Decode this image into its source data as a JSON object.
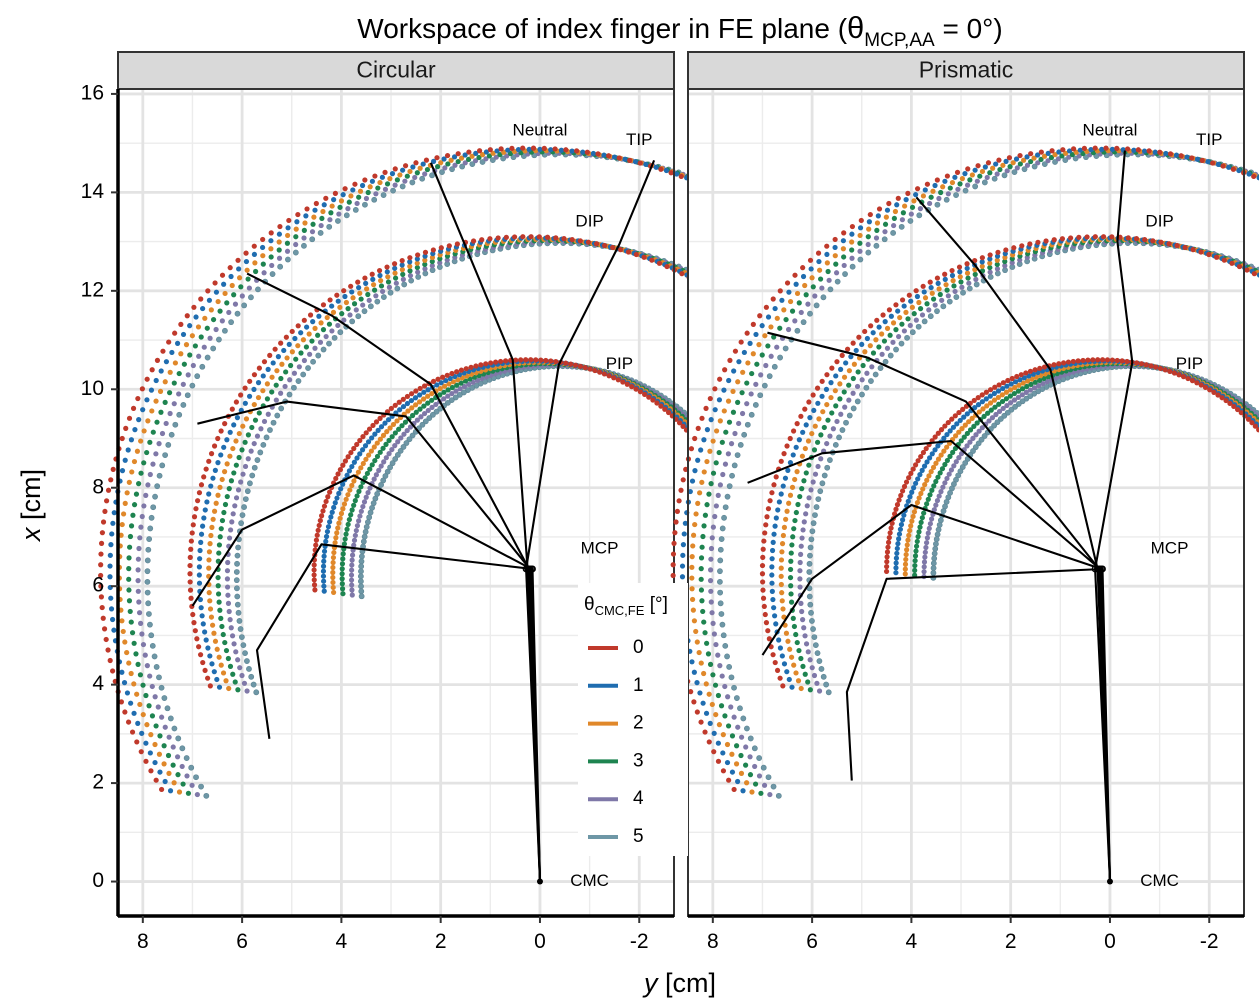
{
  "chart_data": {
    "type": "scatter",
    "title": {
      "prefix": "Workspace of index finger in FE plane (",
      "theta": "θ",
      "subscript": "MCP,AA",
      "suffix": " = 0°)"
    },
    "xlabel": {
      "var": "y",
      "unit": " [cm]"
    },
    "ylabel": {
      "var": "x",
      "unit": " [cm]"
    },
    "x_reversed": true,
    "xlim": [
      8.5,
      -2.7
    ],
    "ylim": [
      -0.7,
      16.1
    ],
    "xticks": [
      8,
      6,
      4,
      2,
      0,
      -2
    ],
    "xtick_labels": [
      "8",
      "6",
      "4",
      "2",
      "0",
      "-2"
    ],
    "yticks": [
      0,
      2,
      4,
      6,
      8,
      10,
      12,
      14,
      16
    ],
    "ytick_labels": [
      "0",
      "2",
      "4",
      "6",
      "8",
      "10",
      "12",
      "14",
      "16"
    ],
    "grid": true,
    "legend": {
      "title_theta": "θ",
      "title_sub": "CMC,FE",
      "title_unit": " [°]",
      "placement": "center",
      "entries": [
        "0",
        "1",
        "2",
        "3",
        "4",
        "5"
      ]
    },
    "series": [
      {
        "name": "0",
        "color": "#C0392B"
      },
      {
        "name": "1",
        "color": "#1F6DB0"
      },
      {
        "name": "2",
        "color": "#E0882A"
      },
      {
        "name": "3",
        "color": "#1E8450"
      },
      {
        "name": "4",
        "color": "#7F78A8"
      },
      {
        "name": "5",
        "color": "#6E97A6"
      }
    ],
    "annotations": [
      {
        "text": "TIP",
        "x": -2.0,
        "y": 15.05
      },
      {
        "text": "Neutral",
        "x": 0.0,
        "y": 15.25
      },
      {
        "text": "DIP",
        "x": -1.0,
        "y": 13.4
      },
      {
        "text": "PIP",
        "x": -1.6,
        "y": 10.5
      },
      {
        "text": "MCP",
        "x": -1.2,
        "y": 6.75
      },
      {
        "text": "CMC",
        "x": -1.0,
        "y": 0.0
      }
    ],
    "panels": [
      {
        "name": "Circular",
        "arcs": [
          {
            "joint": "PIP",
            "cx": 0.25,
            "cy": 6.3,
            "r": 4.3,
            "start_deg": -4,
            "end_deg": 185
          },
          {
            "joint": "DIP",
            "cx": 0.25,
            "cy": 6.3,
            "r": 6.8,
            "start_deg": 4,
            "end_deg": 200
          },
          {
            "joint": "TIP",
            "cx": 0.25,
            "cy": 6.3,
            "r": 8.6,
            "start_deg": 8,
            "end_deg": 211
          }
        ],
        "poses": [
          [
            [
              0,
              0
            ],
            [
              0.28,
              6.35
            ],
            [
              -0.38,
              10.5
            ],
            [
              -1.6,
              12.95
            ],
            [
              -2.3,
              14.65
            ]
          ],
          [
            [
              0,
              0
            ],
            [
              0.25,
              6.35
            ],
            [
              0.55,
              10.6
            ],
            [
              2.2,
              14.6
            ],
            [
              2.2,
              14.6
            ]
          ],
          [
            [
              0,
              0
            ],
            [
              0.22,
              6.35
            ],
            [
              2.2,
              10.1
            ],
            [
              4.2,
              11.5
            ],
            [
              5.9,
              12.35
            ]
          ],
          [
            [
              0,
              0
            ],
            [
              0.2,
              6.35
            ],
            [
              2.7,
              9.45
            ],
            [
              5.1,
              9.75
            ],
            [
              6.9,
              9.3
            ]
          ],
          [
            [
              0,
              0
            ],
            [
              0.17,
              6.35
            ],
            [
              3.75,
              8.25
            ],
            [
              6.0,
              7.15
            ],
            [
              7.0,
              5.6
            ]
          ],
          [
            [
              0,
              0
            ],
            [
              0.15,
              6.35
            ],
            [
              4.4,
              6.85
            ],
            [
              5.7,
              4.7
            ],
            [
              5.45,
              2.9
            ]
          ]
        ]
      },
      {
        "name": "Prismatic",
        "arcs": [
          {
            "joint": "PIP",
            "cx": 0.2,
            "cy": 6.3,
            "r": 4.3,
            "start_deg": -4,
            "end_deg": 180
          },
          {
            "joint": "DIP",
            "cx": 0.2,
            "cy": 6.3,
            "r": 6.8,
            "start_deg": 4,
            "end_deg": 200
          },
          {
            "joint": "TIP",
            "cx": 0.2,
            "cy": 6.3,
            "r": 8.6,
            "start_deg": 8,
            "end_deg": 211
          }
        ],
        "poses": [
          [
            [
              0,
              0
            ],
            [
              0.3,
              6.35
            ],
            [
              -0.45,
              10.55
            ],
            [
              -0.15,
              13.0
            ],
            [
              -0.3,
              14.85
            ]
          ],
          [
            [
              0,
              0
            ],
            [
              0.25,
              6.35
            ],
            [
              1.2,
              10.4
            ],
            [
              2.7,
              12.5
            ],
            [
              3.9,
              13.9
            ]
          ],
          [
            [
              0,
              0
            ],
            [
              0.22,
              6.35
            ],
            [
              2.9,
              9.75
            ],
            [
              4.9,
              10.65
            ],
            [
              6.9,
              11.15
            ]
          ],
          [
            [
              0,
              0
            ],
            [
              0.2,
              6.35
            ],
            [
              3.2,
              8.95
            ],
            [
              5.8,
              8.7
            ],
            [
              7.3,
              8.1
            ]
          ],
          [
            [
              0,
              0
            ],
            [
              0.17,
              6.35
            ],
            [
              4.0,
              7.65
            ],
            [
              6.0,
              6.15
            ],
            [
              7.0,
              4.6
            ]
          ],
          [
            [
              0,
              0
            ],
            [
              0.15,
              6.35
            ],
            [
              4.5,
              6.15
            ],
            [
              5.3,
              3.85
            ],
            [
              5.2,
              2.05
            ]
          ]
        ]
      }
    ]
  }
}
